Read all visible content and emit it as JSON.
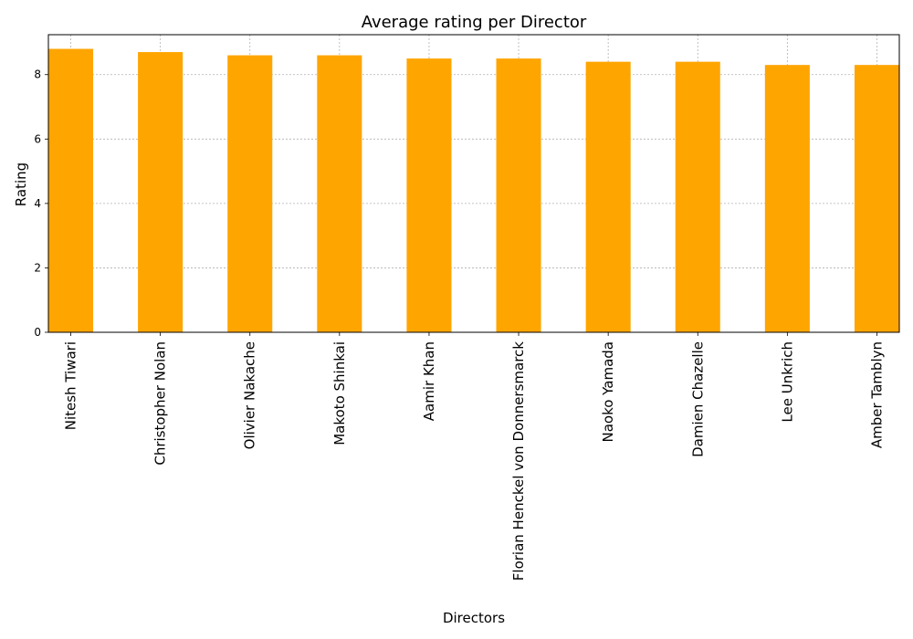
{
  "chart_data": {
    "type": "bar",
    "title": "Average rating per Director",
    "xlabel": "Directors",
    "ylabel": "Rating",
    "categories": [
      "Nitesh Tiwari",
      "Christopher Nolan",
      "Olivier Nakache",
      "Makoto Shinkai",
      "Aamir Khan",
      "Florian Henckel von Donnersmarck",
      "Naoko Yamada",
      "Damien Chazelle",
      "Lee Unkrich",
      "Amber Tamblyn"
    ],
    "values": [
      8.8,
      8.7,
      8.6,
      8.6,
      8.5,
      8.5,
      8.4,
      8.4,
      8.3,
      8.3
    ],
    "ylim": [
      0,
      9.24
    ],
    "yticks": [
      "0",
      "2",
      "4",
      "6",
      "8"
    ],
    "bar_color": "#ffa500",
    "grid": true
  }
}
